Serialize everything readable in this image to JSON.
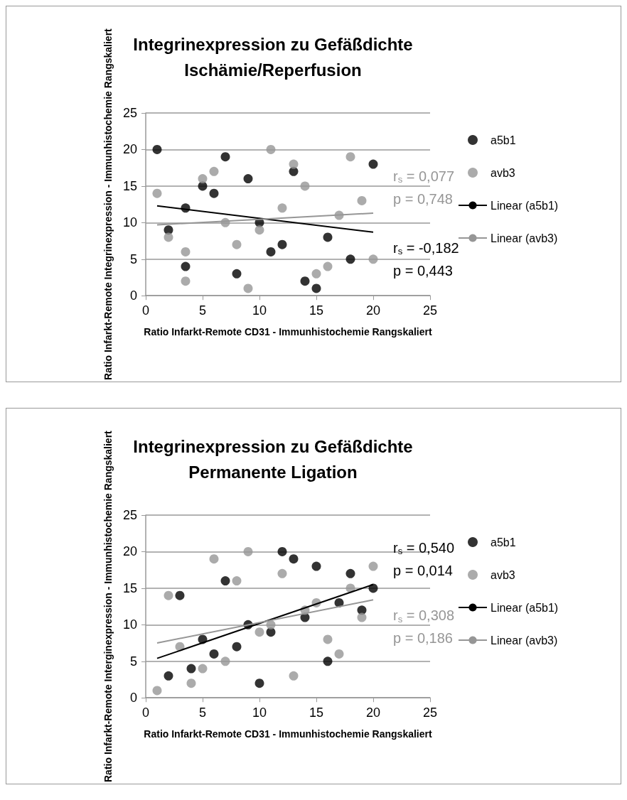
{
  "chart_data": [
    {
      "type": "scatter",
      "title": "Integrinexpression zu Gefäßdichte",
      "subtitle": "Ischämie/Reperfusion",
      "xlabel": "Ratio Infarkt-Remote CD31 - Immunhistochemie Rangskaliert",
      "ylabel": "Ratio Infarkt-Remote Integrinexpression - Immunhistochemie Rangskaliert",
      "xlim": [
        0,
        25
      ],
      "xticks": [
        0,
        5,
        10,
        15,
        20,
        25
      ],
      "ylim": [
        0,
        25
      ],
      "yticks": [
        0,
        5,
        10,
        15,
        20,
        25
      ],
      "grid": "y",
      "legend": "right",
      "marker": "circle",
      "annotations": [
        "r$_{s}$ = -0,182\np = 0,443",
        "r$_{s}$ = 0,077\np = 0,748"
      ],
      "series": [
        {
          "name": "a5b1",
          "color": "#000000",
          "x": [
            1,
            7,
            9,
            5,
            6,
            13,
            20,
            3.5,
            2,
            10,
            16,
            12,
            11,
            18,
            3.5,
            8,
            14,
            15
          ],
          "values": [
            20,
            19,
            16,
            15,
            14,
            17,
            18,
            12,
            9,
            10,
            8,
            7,
            6,
            5,
            4,
            3,
            2,
            1
          ]
        },
        {
          "name": "avb3",
          "color": "#969696",
          "x": [
            11,
            18,
            13,
            6,
            5,
            1,
            14,
            19,
            12,
            17,
            7,
            10,
            2,
            8,
            3.5,
            20,
            16,
            15,
            3.5,
            9
          ],
          "values": [
            20,
            19,
            18,
            17,
            16,
            14,
            15,
            13,
            12,
            11,
            10,
            9,
            8,
            7,
            6,
            5,
            4,
            3,
            2,
            1
          ]
        },
        {
          "name": "Linear (a5b1)",
          "type": "line",
          "marker": "none",
          "color": "#000000",
          "x": [
            1,
            20
          ],
          "values": [
            12.3,
            8.7
          ]
        },
        {
          "name": "Linear (avb3)",
          "type": "line",
          "marker": "none",
          "color": "#969696",
          "x": [
            1,
            20
          ],
          "values": [
            9.7,
            11.3
          ]
        }
      ]
    },
    {
      "type": "scatter",
      "title": "Integrinexpression zu Gefäßdichte",
      "subtitle": "Permanente Ligation",
      "xlabel": "Ratio Infarkt-Remote CD31 - Immunhistochemie Rangskaliert",
      "ylabel": "Ratio Infarkt-Remote Interginexpression - Immunhistochemie Rangskaliert",
      "xlim": [
        0,
        25
      ],
      "xticks": [
        0,
        5,
        10,
        15,
        20,
        25
      ],
      "ylim": [
        0,
        25
      ],
      "yticks": [
        0,
        5,
        10,
        15,
        20,
        25
      ],
      "grid": "y",
      "legend": "right",
      "marker": "circle",
      "annotations": [
        "r$_{s}$ = 0,540\np = 0,014",
        "r$_{s}$ = 0,308\np = 0,186"
      ],
      "series": [
        {
          "name": "a5b1",
          "color": "#000000",
          "x": [
            2,
            3,
            4,
            5,
            6,
            7,
            8,
            9,
            10,
            11,
            12,
            13,
            14,
            15,
            16,
            17,
            18,
            19,
            20
          ],
          "values": [
            3,
            14,
            4,
            8,
            6,
            16,
            7,
            10,
            2,
            9,
            20,
            19,
            11,
            18,
            5,
            13,
            17,
            12,
            15
          ]
        },
        {
          "name": "avb3",
          "color": "#969696",
          "x": [
            1,
            2,
            3,
            4,
            5,
            6,
            7,
            8,
            9,
            10,
            11,
            12,
            13,
            14,
            15,
            16,
            17,
            18,
            19,
            20
          ],
          "values": [
            1,
            14,
            7,
            2,
            4,
            19,
            5,
            16,
            20,
            9,
            10,
            17,
            3,
            12,
            13,
            8,
            6,
            15,
            11,
            18
          ]
        },
        {
          "name": "Linear (a5b1)",
          "type": "line",
          "marker": "none",
          "color": "#000000",
          "x": [
            1,
            20
          ],
          "values": [
            5.4,
            15.5
          ]
        },
        {
          "name": "Linear (avb3)",
          "type": "line",
          "marker": "none",
          "color": "#969696",
          "x": [
            1,
            20
          ],
          "values": [
            7.5,
            13.4
          ]
        }
      ]
    }
  ]
}
